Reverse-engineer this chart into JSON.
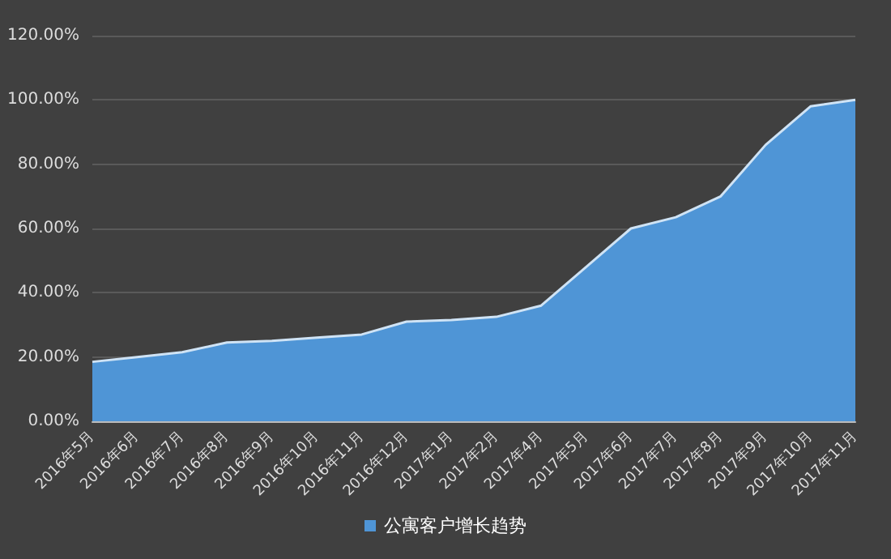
{
  "chart_data": {
    "type": "area",
    "categories": [
      "2016年5月",
      "2016年6月",
      "2016年7月",
      "2016年8月",
      "2016年9月",
      "2016年10月",
      "2016年11月",
      "2016年12月",
      "2017年1月",
      "2017年2月",
      "2017年4月",
      "2017年5月",
      "2017年6月",
      "2017年7月",
      "2017年8月",
      "2017年9月",
      "2017年10月",
      "2017年11月"
    ],
    "series": [
      {
        "name": "公寓客户增长趋势",
        "color": "#4f95d6",
        "values": [
          18.5,
          20,
          21.5,
          24.5,
          25,
          26,
          27,
          31,
          31.5,
          32.5,
          36,
          48,
          60,
          63.5,
          70,
          86,
          98,
          100
        ]
      }
    ],
    "ylim": [
      0,
      120
    ],
    "yticks": [
      {
        "value": 0,
        "label": "0.00%"
      },
      {
        "value": 20,
        "label": "20.00%"
      },
      {
        "value": 40,
        "label": "40.00%"
      },
      {
        "value": 60,
        "label": "60.00%"
      },
      {
        "value": 80,
        "label": "80.00%"
      },
      {
        "value": 100,
        "label": "100.00%"
      },
      {
        "value": 120,
        "label": "120.00%"
      }
    ],
    "grid": "y",
    "legend": "bottom",
    "marker": "none"
  }
}
